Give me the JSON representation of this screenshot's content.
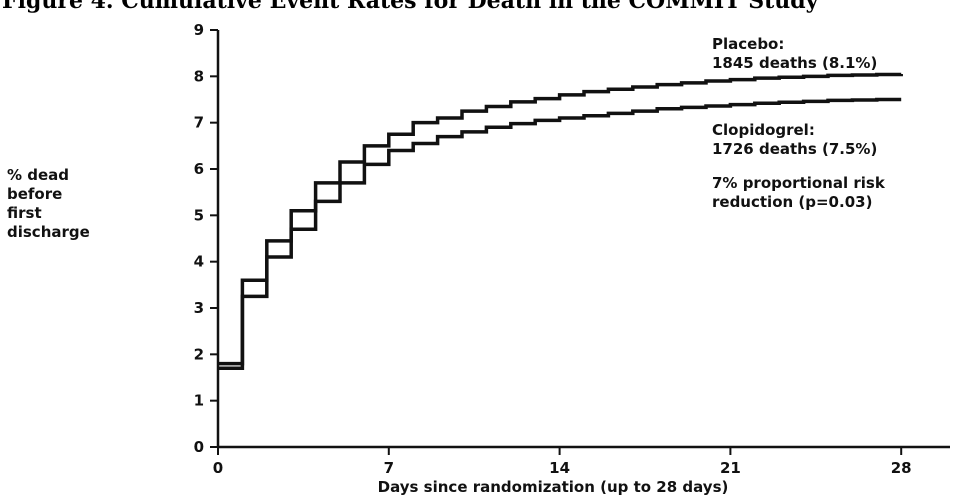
{
  "chart_data": {
    "type": "line",
    "title": "Figure 4. Cumulative Event Rates for Death in the COMMIT Study",
    "ylabel": [
      "% dead",
      "before",
      "first",
      "discharge"
    ],
    "xlabel": "Days since randomization (up to 28 days)",
    "xlim": [
      0,
      30
    ],
    "ylim": [
      0,
      9
    ],
    "xticks": [
      "0",
      "7",
      "14",
      "21",
      "28"
    ],
    "yticks": [
      "0",
      "1",
      "2",
      "3",
      "4",
      "5",
      "6",
      "7",
      "8",
      "9"
    ],
    "grid": false,
    "series": [
      {
        "name": "Placebo",
        "step": true,
        "x": [
          0,
          1,
          2,
          3,
          4,
          5,
          6,
          7,
          8,
          9,
          10,
          11,
          12,
          13,
          14,
          15,
          16,
          17,
          18,
          19,
          20,
          21,
          22,
          23,
          24,
          25,
          26,
          27,
          28
        ],
        "y": [
          1.8,
          3.6,
          4.45,
          5.1,
          5.7,
          6.15,
          6.5,
          6.75,
          7.0,
          7.1,
          7.25,
          7.35,
          7.45,
          7.52,
          7.6,
          7.67,
          7.72,
          7.77,
          7.82,
          7.86,
          7.9,
          7.93,
          7.96,
          7.98,
          8.0,
          8.02,
          8.03,
          8.04,
          8.05
        ]
      },
      {
        "name": "Clopidogrel",
        "step": true,
        "x": [
          0,
          1,
          2,
          3,
          4,
          5,
          6,
          7,
          8,
          9,
          10,
          11,
          12,
          13,
          14,
          15,
          16,
          17,
          18,
          19,
          20,
          21,
          22,
          23,
          24,
          25,
          26,
          27,
          28
        ],
        "y": [
          1.7,
          3.25,
          4.1,
          4.7,
          5.3,
          5.7,
          6.1,
          6.4,
          6.55,
          6.7,
          6.8,
          6.9,
          6.98,
          7.05,
          7.1,
          7.15,
          7.2,
          7.25,
          7.3,
          7.33,
          7.36,
          7.39,
          7.42,
          7.44,
          7.46,
          7.48,
          7.49,
          7.5,
          7.5
        ]
      }
    ],
    "annotations": {
      "placebo_label": "Placebo:",
      "placebo_deaths": "1845 deaths (8.1%)",
      "clopidogrel_label": "Clopidogrel:",
      "clopidogrel_deaths": "1726 deaths (7.5%)",
      "risk_line1": "7% proportional risk",
      "risk_line2": "reduction (p=0.03)"
    }
  },
  "colors": {
    "line": "#111111",
    "axis": "#111111",
    "text": "#111111"
  }
}
